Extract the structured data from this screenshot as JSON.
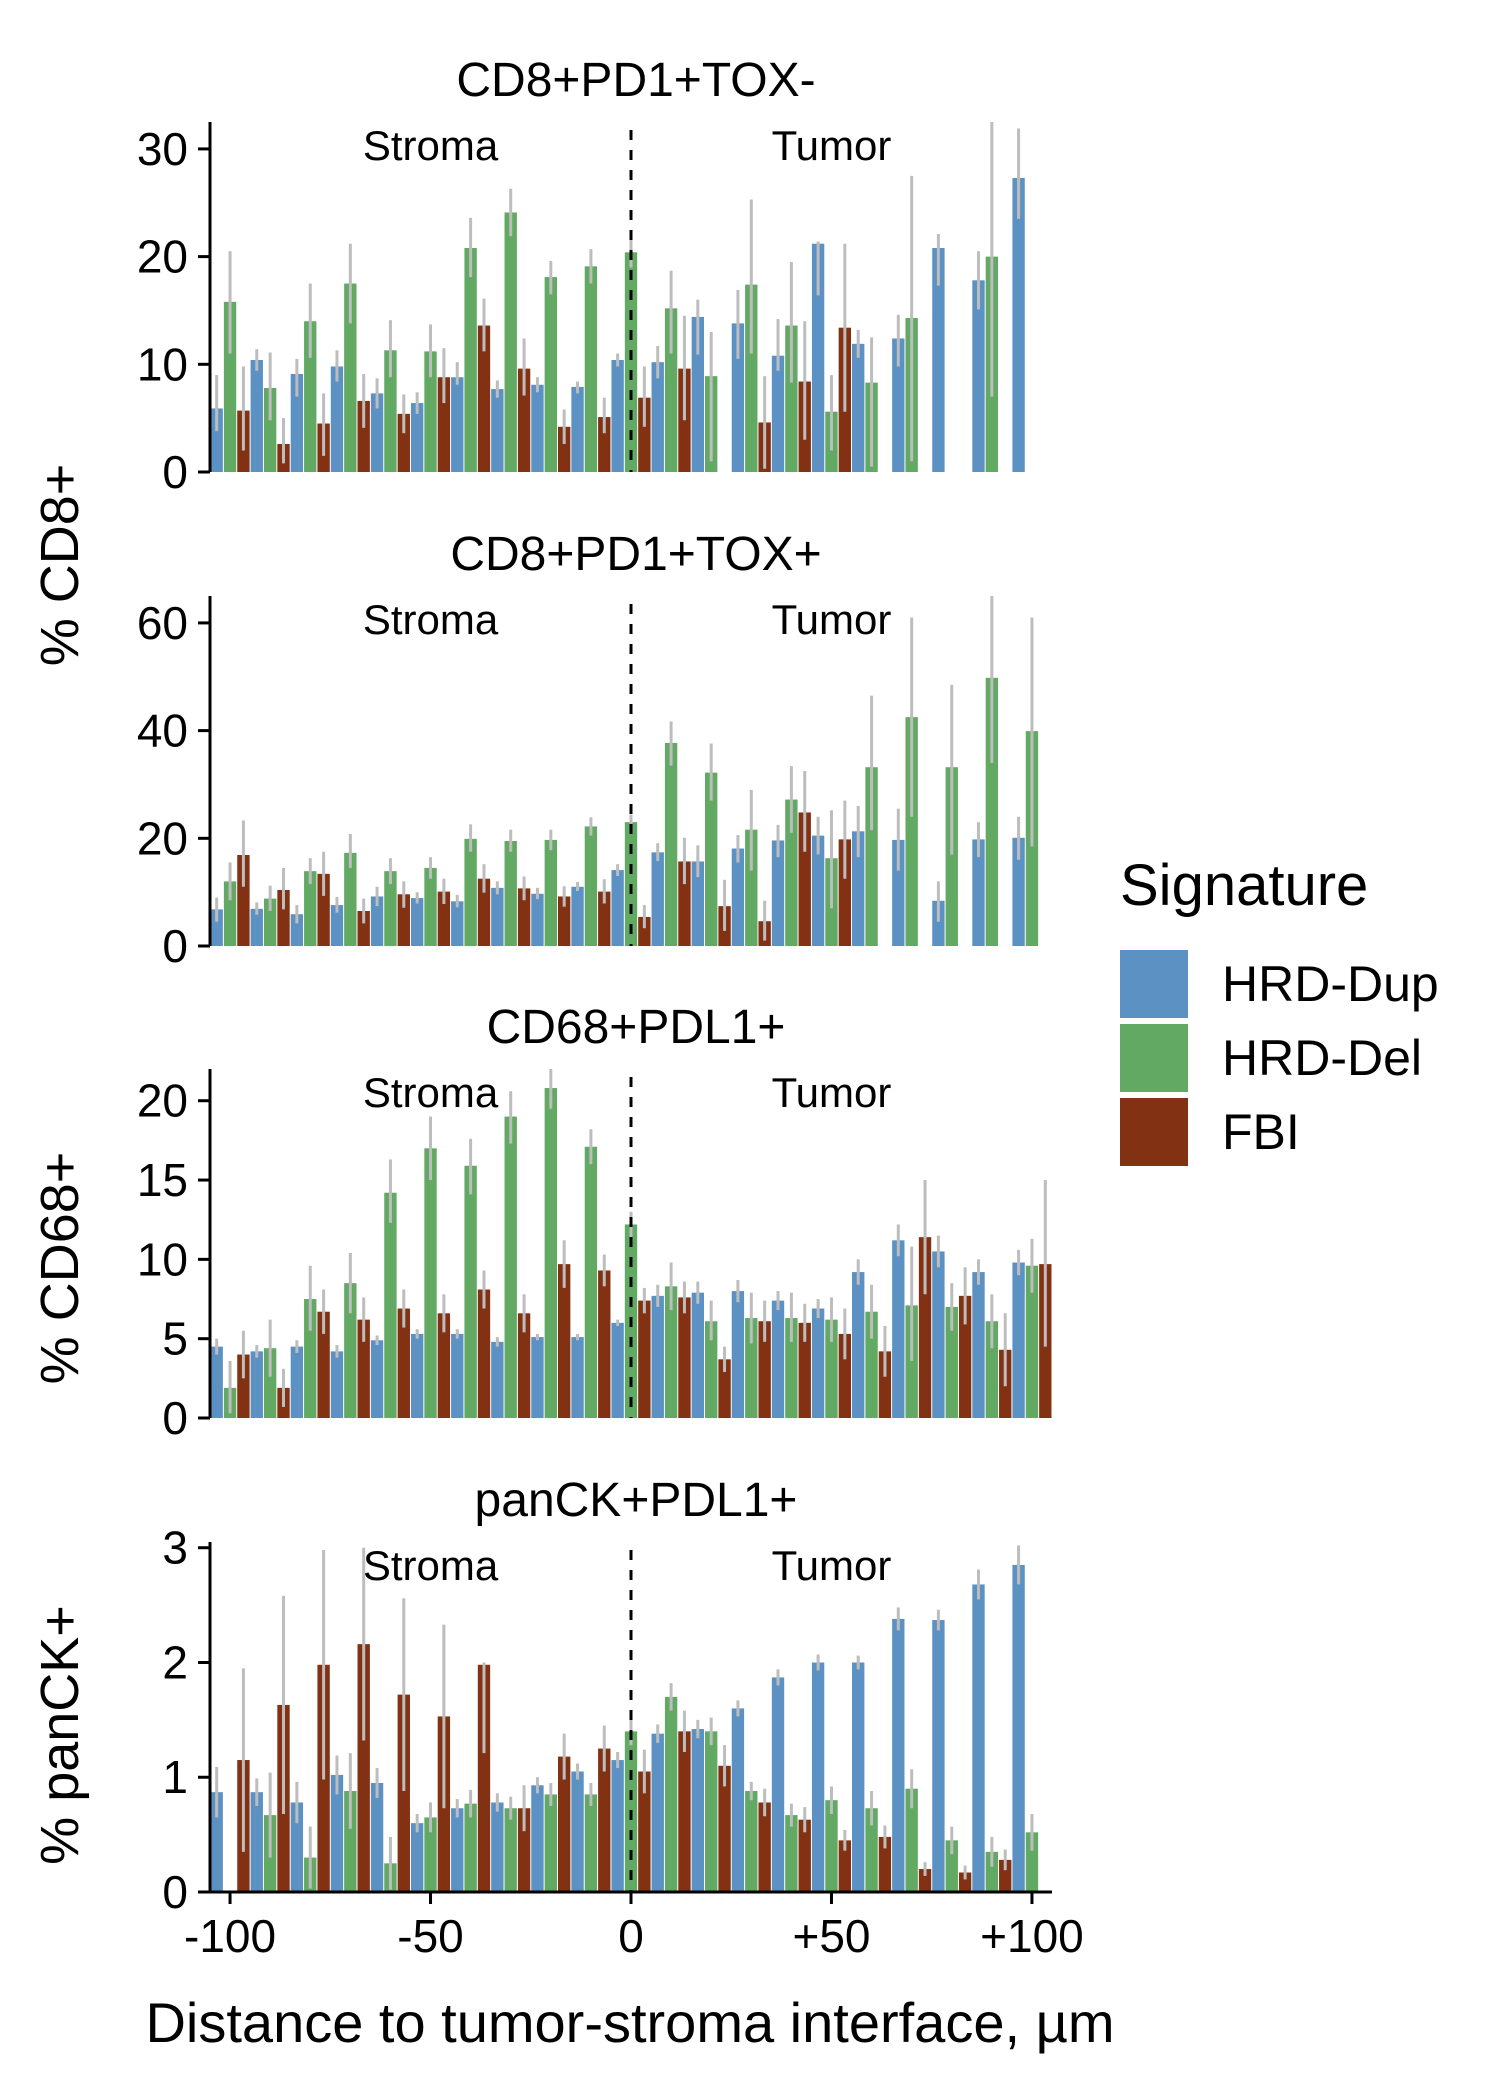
{
  "chart_data": [
    {
      "type": "bar",
      "title": "CD8+PD1+TOX-",
      "xlabel": "Distance to tumor-stroma interface, µm",
      "ylabel": "% CD8+",
      "ylabel_shared_with_next": true,
      "ylim": [
        0,
        32.5
      ],
      "yticks": [
        0,
        10,
        20,
        30
      ],
      "xticks": [
        "-100",
        "-50",
        "0",
        "+50",
        "+100"
      ],
      "xlim": [
        -105,
        105
      ],
      "regions": [
        "Stroma",
        "Tumor"
      ],
      "x": [
        -100,
        -90,
        -80,
        -70,
        -60,
        -50,
        -40,
        -30,
        -20,
        -10,
        0,
        10,
        20,
        30,
        40,
        50,
        60,
        70,
        80,
        90,
        100
      ],
      "series": [
        {
          "name": "HRD-Dup",
          "values": [
            5.9,
            10.4,
            9.1,
            9.8,
            7.3,
            6.4,
            8.8,
            7.7,
            8.1,
            7.9,
            10.4,
            10.2,
            14.4,
            13.8,
            10.8,
            21.2,
            11.9,
            12.4,
            20.8,
            17.8,
            27.3
          ],
          "err_low": [
            3.8,
            9.4,
            7.0,
            8.4,
            5.9,
            5.4,
            8.1,
            6.9,
            7.4,
            7.3,
            9.8,
            8.7,
            10.9,
            10.5,
            9.4,
            16.4,
            10.6,
            9.8,
            17.3,
            15.1,
            23.5
          ],
          "err_high": [
            9.0,
            11.4,
            10.5,
            11.3,
            8.7,
            7.4,
            10.2,
            8.5,
            8.8,
            8.4,
            11.0,
            11.7,
            16.0,
            16.9,
            14.2,
            21.4,
            13.2,
            14.6,
            22.1,
            20.5,
            31.9
          ]
        },
        {
          "name": "HRD-Del",
          "values": [
            15.8,
            7.8,
            14.0,
            17.5,
            11.3,
            11.2,
            20.8,
            24.1,
            18.1,
            19.1,
            20.4,
            15.2,
            8.9,
            17.4,
            13.6,
            5.6,
            8.3,
            14.3,
            0,
            20.0,
            0
          ],
          "err_low": [
            11.0,
            4.8,
            10.6,
            13.8,
            8.8,
            8.8,
            18.1,
            21.9,
            16.5,
            17.5,
            19.0,
            11.0,
            1.0,
            11.0,
            8.3,
            2.0,
            0.5,
            1.0,
            0,
            7.0,
            0
          ],
          "err_high": [
            20.5,
            11.1,
            17.5,
            21.2,
            14.1,
            13.7,
            23.6,
            26.3,
            19.6,
            20.7,
            21.8,
            18.7,
            13.0,
            25.3,
            19.5,
            9.0,
            12.5,
            27.5,
            0,
            32.5,
            0
          ]
        },
        {
          "name": "FBI",
          "values": [
            5.7,
            2.6,
            4.5,
            6.6,
            5.4,
            8.8,
            13.6,
            9.6,
            4.2,
            5.1,
            6.9,
            9.6,
            0,
            4.6,
            8.4,
            13.4,
            0,
            0,
            0,
            0,
            0
          ],
          "err_low": [
            2.0,
            0.8,
            1.5,
            4.1,
            3.6,
            6.4,
            11.2,
            7.1,
            2.6,
            3.6,
            4.2,
            4.8,
            0,
            0.3,
            3.0,
            5.6,
            0,
            0,
            0,
            0,
            0
          ],
          "err_high": [
            9.8,
            5.0,
            7.3,
            9.1,
            7.2,
            11.5,
            16.1,
            12.4,
            5.8,
            6.9,
            9.8,
            14.5,
            0,
            8.9,
            14.0,
            21.2,
            0,
            0,
            0,
            0,
            0
          ]
        }
      ]
    },
    {
      "type": "bar",
      "title": "CD8+PD1+TOX+",
      "ylabel": "% CD8+",
      "ylim": [
        0,
        65
      ],
      "yticks": [
        0,
        20,
        40,
        60
      ],
      "xticks": [
        "-100",
        "-50",
        "0",
        "+50",
        "+100"
      ],
      "xlim": [
        -105,
        105
      ],
      "regions": [
        "Stroma",
        "Tumor"
      ],
      "x": [
        -100,
        -90,
        -80,
        -70,
        -60,
        -50,
        -40,
        -30,
        -20,
        -10,
        0,
        10,
        20,
        30,
        40,
        50,
        60,
        70,
        80,
        90,
        100
      ],
      "series": [
        {
          "name": "HRD-Dup",
          "values": [
            6.8,
            6.9,
            5.9,
            7.6,
            9.2,
            8.9,
            8.3,
            10.8,
            9.7,
            11.0,
            14.1,
            17.4,
            15.7,
            18.1,
            19.6,
            20.5,
            21.3,
            19.7,
            8.4,
            19.8,
            20.1
          ],
          "err_low": [
            4.5,
            5.8,
            4.2,
            6.2,
            7.4,
            7.9,
            7.2,
            9.6,
            8.7,
            10.2,
            13.0,
            15.8,
            12.8,
            15.5,
            16.5,
            17.0,
            16.5,
            14.0,
            4.5,
            16.5,
            16.0
          ],
          "err_high": [
            9.0,
            8.1,
            7.6,
            9.1,
            11.0,
            10.0,
            9.5,
            12.0,
            10.8,
            11.9,
            15.2,
            19.1,
            18.7,
            20.6,
            22.5,
            24.0,
            26.0,
            25.5,
            12.0,
            23.0,
            24.0
          ]
        },
        {
          "name": "HRD-Del",
          "values": [
            12.0,
            8.8,
            13.9,
            17.3,
            13.9,
            14.5,
            19.9,
            19.5,
            19.7,
            22.2,
            23.0,
            37.7,
            32.2,
            21.6,
            27.2,
            16.3,
            33.2,
            42.5,
            33.2,
            49.8,
            39.9
          ],
          "err_low": [
            8.5,
            6.5,
            11.5,
            14.5,
            11.5,
            12.5,
            17.5,
            17.5,
            17.8,
            20.5,
            21.6,
            33.5,
            27.0,
            14.0,
            21.0,
            7.0,
            21.5,
            24.0,
            17.0,
            34.0,
            18.5
          ],
          "err_high": [
            15.5,
            11.2,
            16.3,
            20.8,
            16.3,
            16.5,
            22.6,
            21.6,
            21.6,
            23.9,
            24.4,
            41.7,
            37.6,
            29.0,
            33.4,
            25.2,
            46.5,
            61.0,
            48.5,
            65.0,
            61.0
          ]
        },
        {
          "name": "FBI",
          "values": [
            16.9,
            10.4,
            13.4,
            6.5,
            9.6,
            10.1,
            12.5,
            10.7,
            9.2,
            10.1,
            5.4,
            15.7,
            7.4,
            4.6,
            24.8,
            19.8,
            0,
            0,
            0,
            0,
            0
          ],
          "err_low": [
            11.0,
            6.8,
            9.3,
            4.2,
            7.1,
            7.8,
            9.9,
            8.5,
            7.3,
            7.9,
            3.3,
            11.5,
            2.8,
            1.0,
            17.5,
            12.5,
            0,
            0,
            0,
            0,
            0
          ],
          "err_high": [
            23.3,
            14.5,
            17.5,
            8.8,
            12.0,
            12.5,
            15.2,
            12.9,
            11.1,
            12.4,
            7.6,
            20.1,
            12.3,
            8.4,
            32.5,
            27.0,
            0,
            0,
            0,
            0,
            0
          ]
        }
      ]
    },
    {
      "type": "bar",
      "title": "CD68+PDL1+",
      "ylabel": "% CD68+",
      "ylim": [
        0,
        22
      ],
      "yticks": [
        0,
        5,
        10,
        15,
        20
      ],
      "xticks": [
        "-100",
        "-50",
        "0",
        "+50",
        "+100"
      ],
      "xlim": [
        -105,
        105
      ],
      "regions": [
        "Stroma",
        "Tumor"
      ],
      "x": [
        -100,
        -90,
        -80,
        -70,
        -60,
        -50,
        -40,
        -30,
        -20,
        -10,
        0,
        10,
        20,
        30,
        40,
        50,
        60,
        70,
        80,
        90,
        100
      ],
      "series": [
        {
          "name": "HRD-Dup",
          "values": [
            4.5,
            4.2,
            4.5,
            4.2,
            4.9,
            5.3,
            5.3,
            4.8,
            5.1,
            5.1,
            6.0,
            7.7,
            7.9,
            8.0,
            7.4,
            6.9,
            9.2,
            11.2,
            10.5,
            9.2,
            9.8
          ],
          "err_low": [
            4.0,
            3.8,
            4.1,
            3.8,
            4.6,
            5.0,
            5.0,
            4.5,
            4.9,
            4.9,
            5.8,
            7.0,
            7.2,
            7.3,
            6.8,
            6.3,
            8.4,
            10.2,
            9.5,
            8.4,
            9.0
          ],
          "err_high": [
            5.0,
            4.6,
            4.9,
            4.6,
            5.2,
            5.6,
            5.6,
            5.1,
            5.3,
            5.3,
            6.2,
            8.4,
            8.6,
            8.7,
            8.0,
            7.5,
            10.0,
            12.2,
            11.5,
            10.0,
            10.6
          ]
        },
        {
          "name": "HRD-Del",
          "values": [
            1.9,
            4.4,
            7.5,
            8.5,
            14.2,
            17.0,
            15.9,
            19.0,
            20.8,
            17.1,
            12.2,
            8.3,
            6.1,
            6.3,
            6.3,
            6.2,
            6.7,
            7.1,
            7.0,
            6.1,
            9.6
          ],
          "err_low": [
            0.3,
            2.6,
            5.5,
            6.6,
            12.3,
            15.0,
            14.1,
            17.3,
            19.5,
            16.0,
            11.3,
            6.8,
            4.9,
            4.7,
            4.8,
            4.8,
            5.0,
            3.6,
            5.5,
            4.4,
            7.9
          ],
          "err_high": [
            3.6,
            6.2,
            9.6,
            10.4,
            16.3,
            19.0,
            17.6,
            20.6,
            22.0,
            18.2,
            13.0,
            9.8,
            7.4,
            7.9,
            7.9,
            7.6,
            8.4,
            10.8,
            8.5,
            7.8,
            11.3
          ]
        },
        {
          "name": "FBI",
          "values": [
            4.0,
            1.9,
            6.7,
            6.2,
            6.9,
            6.6,
            8.1,
            6.6,
            9.7,
            9.3,
            7.4,
            7.6,
            3.7,
            6.1,
            6.0,
            5.3,
            4.2,
            11.4,
            7.7,
            4.3,
            9.7
          ],
          "err_low": [
            2.5,
            0.7,
            5.3,
            4.8,
            5.7,
            5.4,
            6.9,
            5.4,
            8.2,
            8.3,
            6.6,
            6.6,
            2.9,
            4.8,
            4.8,
            3.7,
            2.6,
            7.8,
            5.9,
            2.0,
            4.5
          ],
          "err_high": [
            5.5,
            3.1,
            8.1,
            7.6,
            8.1,
            7.8,
            9.3,
            7.8,
            11.2,
            10.3,
            8.2,
            8.6,
            4.5,
            7.4,
            7.2,
            6.9,
            5.8,
            15.0,
            9.5,
            6.6,
            15.0
          ]
        }
      ]
    },
    {
      "type": "bar",
      "title": "panCK+PDL1+",
      "ylabel": "% panCK+",
      "ylim": [
        0,
        3.05
      ],
      "yticks": [
        0,
        1,
        2,
        3
      ],
      "xticks": [
        "-100",
        "-50",
        "0",
        "+50",
        "+100"
      ],
      "xlim": [
        -105,
        105
      ],
      "regions": [
        "Stroma",
        "Tumor"
      ],
      "x": [
        -100,
        -90,
        -80,
        -70,
        -60,
        -50,
        -40,
        -30,
        -20,
        -10,
        0,
        10,
        20,
        30,
        40,
        50,
        60,
        70,
        80,
        90,
        100
      ],
      "series": [
        {
          "name": "HRD-Dup",
          "values": [
            0.87,
            0.87,
            0.78,
            1.02,
            0.95,
            0.6,
            0.73,
            0.78,
            0.93,
            1.05,
            1.15,
            1.38,
            1.42,
            1.6,
            1.87,
            2.0,
            2.0,
            2.38,
            2.37,
            2.68,
            2.85
          ],
          "err_low": [
            0.65,
            0.75,
            0.6,
            0.85,
            0.82,
            0.52,
            0.65,
            0.7,
            0.86,
            0.98,
            1.08,
            1.3,
            1.34,
            1.53,
            1.8,
            1.93,
            1.94,
            2.28,
            2.28,
            2.55,
            2.68
          ],
          "err_high": [
            1.09,
            0.99,
            0.96,
            1.19,
            1.08,
            0.68,
            0.81,
            0.86,
            1.0,
            1.12,
            1.22,
            1.46,
            1.5,
            1.67,
            1.94,
            2.07,
            2.06,
            2.48,
            2.46,
            2.81,
            3.02
          ]
        },
        {
          "name": "HRD-Del",
          "values": [
            0.0,
            0.67,
            0.3,
            0.88,
            0.25,
            0.65,
            0.77,
            0.73,
            0.85,
            0.85,
            1.4,
            1.7,
            1.4,
            0.88,
            0.67,
            0.8,
            0.73,
            0.9,
            0.45,
            0.35,
            0.52
          ],
          "err_low": [
            0.0,
            0.3,
            0.03,
            0.55,
            0.02,
            0.52,
            0.65,
            0.63,
            0.75,
            0.75,
            1.28,
            1.58,
            1.28,
            0.8,
            0.57,
            0.68,
            0.58,
            0.73,
            0.33,
            0.22,
            0.36
          ],
          "err_high": [
            0.0,
            1.04,
            0.57,
            1.21,
            0.48,
            0.78,
            0.89,
            0.83,
            0.95,
            0.95,
            1.52,
            1.82,
            1.52,
            0.96,
            0.77,
            0.92,
            0.88,
            1.07,
            0.57,
            0.48,
            0.68
          ]
        },
        {
          "name": "FBI",
          "values": [
            1.15,
            1.63,
            1.98,
            2.16,
            1.72,
            1.53,
            1.98,
            0.73,
            1.18,
            1.25,
            1.05,
            1.4,
            1.1,
            0.78,
            0.63,
            0.45,
            0.48,
            0.2,
            0.17,
            0.28,
            0.0
          ],
          "err_low": [
            0.35,
            0.68,
            0.98,
            1.32,
            0.88,
            0.73,
            1.21,
            0.53,
            0.98,
            1.05,
            0.86,
            1.22,
            0.92,
            0.66,
            0.52,
            0.36,
            0.38,
            0.14,
            0.11,
            0.19,
            0.0
          ],
          "err_high": [
            1.95,
            2.58,
            2.98,
            3.0,
            2.56,
            2.33,
            2.0,
            0.93,
            1.38,
            1.45,
            1.24,
            1.58,
            1.28,
            0.9,
            0.74,
            0.54,
            0.58,
            0.26,
            0.23,
            0.37,
            0.0
          ]
        }
      ]
    }
  ],
  "legend": {
    "title": "Signature",
    "items": [
      {
        "label": "HRD-Dup",
        "color": "#5b92c3"
      },
      {
        "label": "HRD-Del",
        "color": "#62a964"
      },
      {
        "label": "FBI",
        "color": "#833113"
      }
    ]
  },
  "colors": {
    "error_bar": "#bdbdbd",
    "interface_line": "#000000"
  }
}
